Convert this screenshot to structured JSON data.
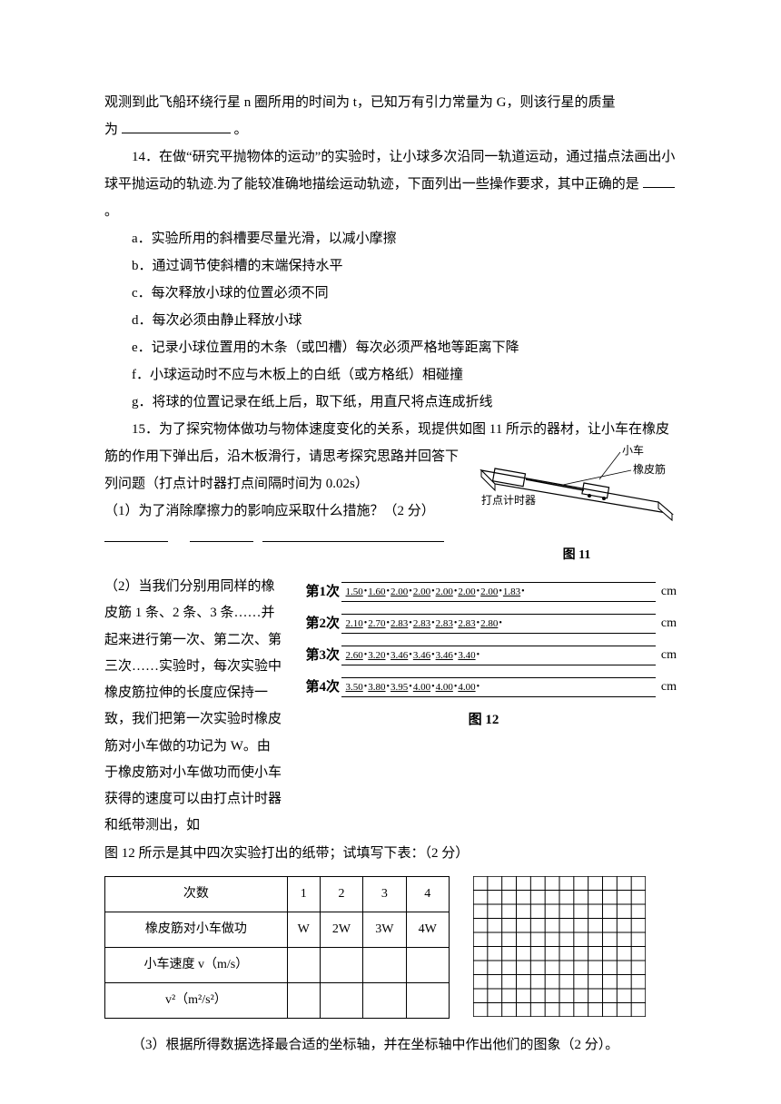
{
  "q13": {
    "line1": "观测到此飞船环绕行星 n 圈所用的时间为 t，已知万有引力常量为 G，则该行星的质量",
    "line2_prefix": "为",
    "line2_suffix": "。"
  },
  "q14": {
    "stem": "14．在做“研究平抛物体的运动”的实验时，让小球多次沿同一轨道运动，通过描点法画出小球平抛运动的轨迹.为了能较准确地描绘运动轨迹，下面列出一些操作要求，其中正确的是",
    "stem_suffix": "。",
    "a": "a．实验所用的斜槽要尽量光滑，以减小摩擦",
    "b": "b．通过调节使斜槽的末端保持水平",
    "c": "c．每次释放小球的位置必须不同",
    "d": "d．每次必须由静止释放小球",
    "e": "e．记录小球位置用的木条（或凹槽）每次必须严格地等距离下降",
    "f": "f．小球运动时不应与木板上的白纸（或方格纸）相碰撞",
    "g": "g．将球的位置记录在纸上后，取下纸，用直尺将点连成折线"
  },
  "q15": {
    "stem1": "15．为了探究物体做功与物体速度变化的关系，现提供如图 11 所示的器材，让小车在橡皮",
    "stem2": "筋的作用下弹出后，沿木板滑行，请思考探究思路并回答下列问题（打点计时器打点间隔时间为 0.02s）",
    "p1": "（1）为了消除摩擦力的影响应采取什么措施？（2 分）",
    "fig11_car": "小车",
    "fig11_rubber": "橡皮筋",
    "fig11_timer": "打点计时器",
    "fig11_label": "图 11",
    "p2": "（2）当我们分别用同样的橡皮筋 1 条、2 条、3 条……并起来进行第一次、第二次、第三次……实验时，每次实验中橡皮筋拉伸的长度应保持一致，我们把第一次实验时橡皮筋对小车做的功记为 W。由于橡皮筋对小车做功而使小车获得的速度可以由打点计时器和纸带测出，如图 12 所示是其中四次实验打出的纸带；试填写下表：（2 分）",
    "p2_part1": "（2）当我们分别用同样的橡皮筋 1 条、2 条、3 条……并起来进行第一次、第二次、第三次……实验时，每次实验中橡皮筋拉伸的长度应保持一致，我们把第一次实验时橡皮筋对小车做的功记为 W。由于橡皮筋对小车做功而使小车获得的速度可以由打点计时器和纸带测出，如",
    "p2_part2": "图 12 所示是其中四次实验打出的纸带；试填写下表：（2 分）",
    "tapes": [
      {
        "label": "第1次",
        "vals": [
          "1.50",
          "1.60",
          "2.00",
          "2.00",
          "2.00",
          "2.00",
          "2.00",
          "1.83"
        ],
        "unit": "cm"
      },
      {
        "label": "第2次",
        "vals": [
          "2.10",
          "2.70",
          "2.83",
          "2.83",
          "2.83",
          "2.83",
          "2.80"
        ],
        "unit": "cm"
      },
      {
        "label": "第3次",
        "vals": [
          "2.60",
          "3.20",
          "3.46",
          "3.46",
          "3.46",
          "3.40"
        ],
        "unit": "cm"
      },
      {
        "label": "第4次",
        "vals": [
          "3.50",
          "3.80",
          "3.95",
          "4.00",
          "4.00",
          "4.00"
        ],
        "unit": "cm"
      }
    ],
    "fig12_label": "图 12",
    "table": {
      "headers": [
        "次数",
        "1",
        "2",
        "3",
        "4"
      ],
      "row1": [
        "橡皮筋对小车做功",
        "W",
        "2W",
        "3W",
        "4W"
      ],
      "row2_label": "小车速度 v（m/s）",
      "row3_label": "v²（m²/s²）"
    },
    "grid": {
      "cols": 12,
      "rows": 10,
      "stroke": "#000000",
      "bg": "#ffffff"
    },
    "p3": "（3）根据所得数据选择最合适的坐标轴，并在坐标轴中作出他们的图象（2 分）。"
  }
}
